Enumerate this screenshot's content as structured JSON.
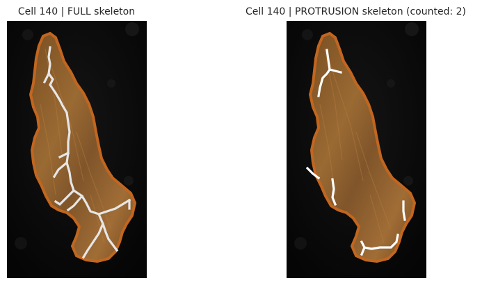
{
  "figure": {
    "panels": [
      {
        "title": "Cell 140 | FULL skeleton",
        "skeleton": "full"
      },
      {
        "title": "Cell 140 | PROTRUSION skeleton (counted: 2)",
        "skeleton": "protrusion"
      }
    ]
  },
  "colors": {
    "background": "#050505",
    "cell_fill": "#8a5a26",
    "cell_outline": "#c2661f",
    "skeleton": "#e6e6e6"
  }
}
